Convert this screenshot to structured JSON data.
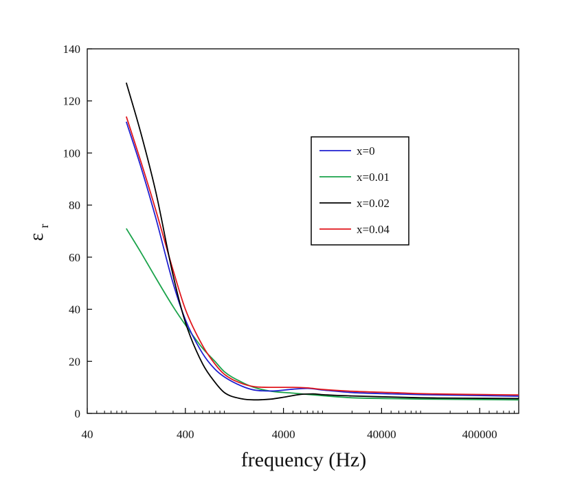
{
  "chart_data": {
    "type": "line",
    "xlabel": "frequency (Hz)",
    "ylabel_main": "ε",
    "ylabel_sub": "r",
    "x_scale": "log",
    "xlim": [
      40,
      1000000
    ],
    "ylim": [
      0,
      140
    ],
    "x_ticks": [
      40,
      400,
      4000,
      40000,
      400000
    ],
    "x_tick_labels": [
      "40",
      "400",
      "4000",
      "40000",
      "400000"
    ],
    "y_ticks": [
      0,
      20,
      40,
      60,
      80,
      100,
      120,
      140
    ],
    "y_tick_labels": [
      "0",
      "20",
      "40",
      "60",
      "80",
      "100",
      "120",
      "140"
    ],
    "grid": false,
    "legend_position": "upper-right-center",
    "series": [
      {
        "name": "x=0",
        "color": "#1f1fd0",
        "points": [
          [
            100,
            112
          ],
          [
            140,
            95
          ],
          [
            200,
            75
          ],
          [
            300,
            50
          ],
          [
            400,
            36
          ],
          [
            600,
            23
          ],
          [
            800,
            17
          ],
          [
            1000,
            14
          ],
          [
            1500,
            10.5
          ],
          [
            2000,
            9
          ],
          [
            3000,
            8.6
          ],
          [
            5000,
            9.3
          ],
          [
            7000,
            9.6
          ],
          [
            10000,
            9
          ],
          [
            20000,
            8
          ],
          [
            50000,
            7.5
          ],
          [
            100000,
            7.2
          ],
          [
            1000000,
            6.6
          ]
        ]
      },
      {
        "name": "x=0.01",
        "color": "#1aa34a",
        "points": [
          [
            100,
            71
          ],
          [
            140,
            62
          ],
          [
            200,
            52
          ],
          [
            300,
            41
          ],
          [
            400,
            34
          ],
          [
            600,
            25
          ],
          [
            800,
            20
          ],
          [
            1000,
            16
          ],
          [
            1500,
            12
          ],
          [
            2000,
            10
          ],
          [
            3000,
            8.5
          ],
          [
            5000,
            7.8
          ],
          [
            10000,
            6.8
          ],
          [
            20000,
            6
          ],
          [
            50000,
            5.7
          ],
          [
            100000,
            5.5
          ],
          [
            1000000,
            5.2
          ]
        ]
      },
      {
        "name": "x=0.02",
        "color": "#000000",
        "points": [
          [
            100,
            127
          ],
          [
            140,
            108
          ],
          [
            200,
            85
          ],
          [
            300,
            53
          ],
          [
            400,
            35
          ],
          [
            600,
            19
          ],
          [
            800,
            12
          ],
          [
            1000,
            8
          ],
          [
            1500,
            5.6
          ],
          [
            2000,
            5.2
          ],
          [
            3000,
            5.5
          ],
          [
            4000,
            6.2
          ],
          [
            6000,
            7.3
          ],
          [
            8000,
            7.5
          ],
          [
            10000,
            7.2
          ],
          [
            20000,
            6.7
          ],
          [
            50000,
            6.3
          ],
          [
            100000,
            6
          ],
          [
            1000000,
            5.7
          ]
        ]
      },
      {
        "name": "x=0.04",
        "color": "#e0161c",
        "points": [
          [
            100,
            114
          ],
          [
            140,
            97
          ],
          [
            200,
            78
          ],
          [
            300,
            55
          ],
          [
            400,
            40
          ],
          [
            600,
            26
          ],
          [
            800,
            19
          ],
          [
            1000,
            15
          ],
          [
            1500,
            11.5
          ],
          [
            2000,
            10.3
          ],
          [
            3000,
            10
          ],
          [
            5000,
            10
          ],
          [
            7000,
            9.8
          ],
          [
            10000,
            9.2
          ],
          [
            20000,
            8.5
          ],
          [
            50000,
            8
          ],
          [
            100000,
            7.6
          ],
          [
            1000000,
            7.1
          ]
        ]
      }
    ]
  }
}
